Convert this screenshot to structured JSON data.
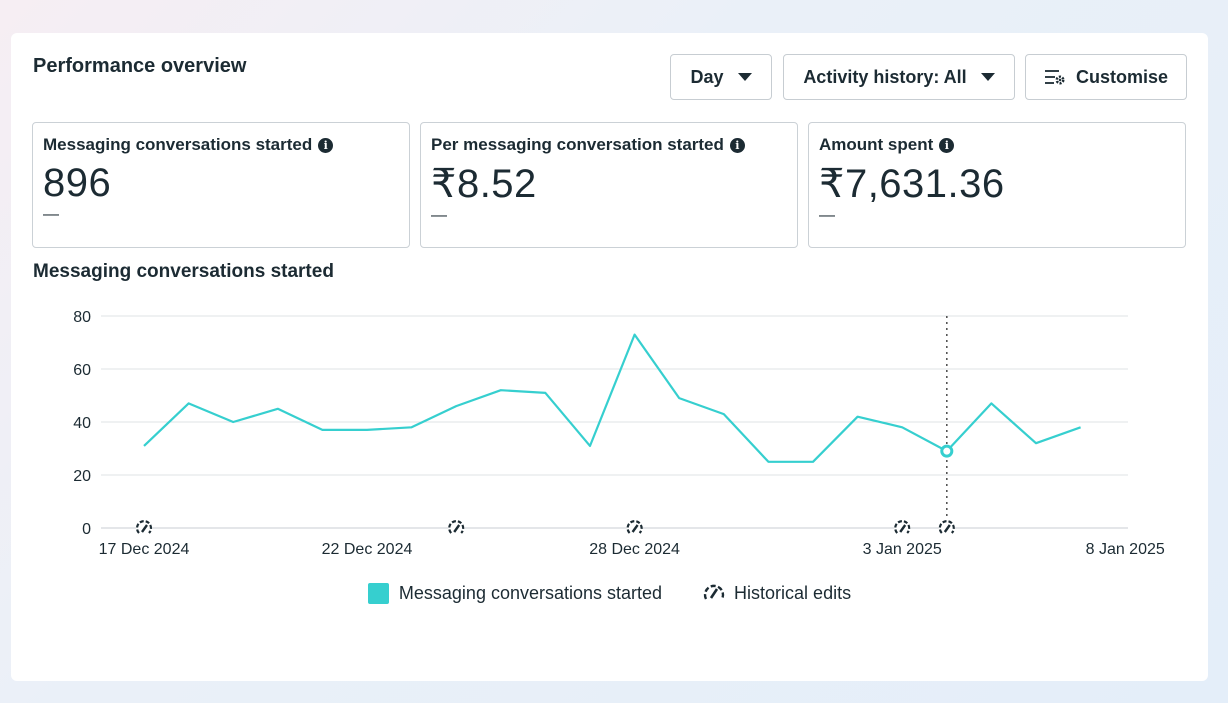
{
  "title": "Performance overview",
  "controls": {
    "day_label": "Day",
    "activity_label": "Activity history: All",
    "customise_label": "Customise"
  },
  "metrics": [
    {
      "label": "Messaging conversations started",
      "value": "896",
      "delta": "—"
    },
    {
      "label": "Per messaging conversation started",
      "value": "₹8.52",
      "delta": "—"
    },
    {
      "label": "Amount spent",
      "value": "₹7,631.36",
      "delta": "—"
    }
  ],
  "chart_title": "Messaging conversations started",
  "chart_data": {
    "type": "line",
    "x": [
      "2024-12-17",
      "2024-12-18",
      "2024-12-19",
      "2024-12-20",
      "2024-12-21",
      "2024-12-22",
      "2024-12-23",
      "2024-12-24",
      "2024-12-25",
      "2024-12-26",
      "2024-12-27",
      "2024-12-28",
      "2024-12-29",
      "2024-12-30",
      "2024-12-31",
      "2025-01-01",
      "2025-01-02",
      "2025-01-03",
      "2025-01-04",
      "2025-01-05",
      "2025-01-06",
      "2025-01-07"
    ],
    "series": [
      {
        "name": "Messaging conversations started",
        "values": [
          31,
          47,
          40,
          45,
          37,
          37,
          38,
          46,
          52,
          51,
          31,
          73,
          49,
          43,
          25,
          25,
          42,
          38,
          29,
          47,
          32,
          38
        ]
      }
    ],
    "xticks": [
      "17 Dec 2024",
      "22 Dec 2024",
      "28 Dec 2024",
      "3 Jan 2025",
      "8 Jan 2025"
    ],
    "yticks": [
      0,
      20,
      40,
      60,
      80
    ],
    "ylim": [
      0,
      80
    ],
    "highlight_index": 18,
    "historical_edit_indices": [
      0,
      7,
      11,
      17,
      18
    ],
    "color": "#36cfcf",
    "grid": true
  },
  "legend": {
    "series_label": "Messaging conversations started",
    "edits_label": "Historical edits"
  }
}
